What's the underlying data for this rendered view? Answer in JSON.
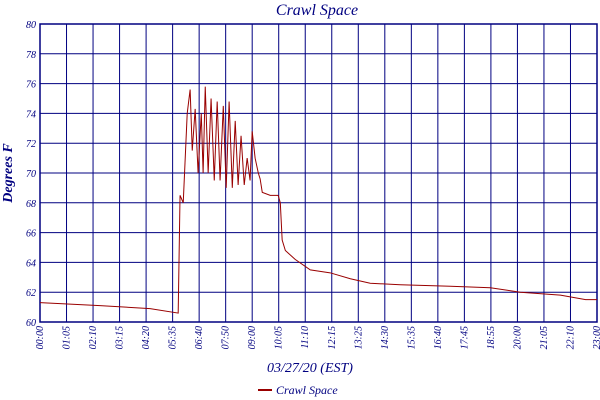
{
  "chart_data": {
    "type": "line",
    "title": "Crawl Space",
    "x_label": "03/27/20 (EST)",
    "y_label": "Degrees F",
    "xlim": [
      0,
      21
    ],
    "ylim": [
      60,
      80
    ],
    "xticks": [
      {
        "value": 0,
        "label": "00:00"
      },
      {
        "value": 1,
        "label": "01:05"
      },
      {
        "value": 2,
        "label": "02:10"
      },
      {
        "value": 3,
        "label": "03:15"
      },
      {
        "value": 4,
        "label": "04:20"
      },
      {
        "value": 5,
        "label": "05:35"
      },
      {
        "value": 6,
        "label": "06:40"
      },
      {
        "value": 7,
        "label": "07:50"
      },
      {
        "value": 8,
        "label": "09:00"
      },
      {
        "value": 9,
        "label": "10:05"
      },
      {
        "value": 10,
        "label": "11:10"
      },
      {
        "value": 11,
        "label": "12:15"
      },
      {
        "value": 12,
        "label": "13:25"
      },
      {
        "value": 13,
        "label": "14:30"
      },
      {
        "value": 14,
        "label": "15:35"
      },
      {
        "value": 15,
        "label": "16:40"
      },
      {
        "value": 16,
        "label": "17:45"
      },
      {
        "value": 17,
        "label": "18:55"
      },
      {
        "value": 18,
        "label": "20:00"
      },
      {
        "value": 19,
        "label": "21:05"
      },
      {
        "value": 20,
        "label": "22:10"
      },
      {
        "value": 21,
        "label": "23:00"
      }
    ],
    "yticks": [
      60,
      62,
      64,
      66,
      68,
      70,
      72,
      74,
      76,
      78,
      80
    ],
    "grid": true,
    "x": [
      0,
      2.26,
      4.15,
      5.21,
      5.28,
      5.4,
      5.55,
      5.66,
      5.74,
      5.85,
      5.96,
      6.08,
      6.15,
      6.23,
      6.34,
      6.45,
      6.57,
      6.68,
      6.79,
      6.91,
      7.02,
      7.13,
      7.25,
      7.36,
      7.47,
      7.58,
      7.7,
      7.81,
      7.92,
      8.0,
      8.11,
      8.23,
      8.3,
      8.38,
      8.68,
      8.98,
      9.06,
      9.13,
      9.25,
      9.62,
      10.19,
      10.94,
      11.7,
      12.45,
      13.58,
      15.47,
      16.98,
      18.11,
      19.62,
      20.57,
      21
    ],
    "series": [
      {
        "name": "Crawl Space",
        "color": "#990000",
        "values": [
          61.3,
          61.1,
          60.9,
          60.6,
          68.5,
          68,
          74,
          75.6,
          71.5,
          74.3,
          70,
          74,
          70,
          75.8,
          70,
          75,
          69.5,
          74.8,
          69.5,
          74.5,
          69,
          74.8,
          69,
          73.5,
          69.2,
          72.5,
          69.2,
          71,
          69.5,
          72.8,
          71,
          70,
          69.6,
          68.7,
          68.5,
          68.5,
          68,
          65.5,
          64.8,
          64.2,
          63.5,
          63.3,
          62.9,
          62.6,
          62.5,
          62.4,
          62.3,
          62,
          61.8,
          61.5,
          61.5
        ]
      }
    ]
  }
}
